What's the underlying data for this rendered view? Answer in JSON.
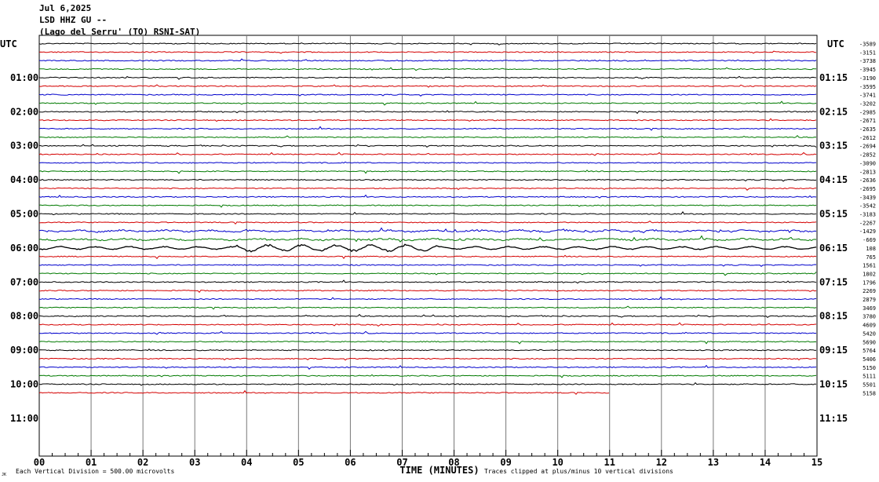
{
  "header": {
    "date": "Jul 6,2025",
    "station": "LSD HHZ GU --",
    "location": "(Lago del Serru' (TO) RSNI-SAT)"
  },
  "axes": {
    "left_unit": "UTC",
    "right_unit": "UTC",
    "xlabel": "TIME (MINUTES)",
    "footer_left": "Each Vertical Division =  500.00 microvolts",
    "footer_right": "Traces clipped at plus/minus 10 vertical divisions",
    "corner_mark": "JK"
  },
  "chart_data": {
    "type": "line",
    "title": "",
    "xlabel": "TIME (MINUTES)",
    "x_ticks": [
      "00",
      "01",
      "02",
      "03",
      "04",
      "05",
      "06",
      "07",
      "08",
      "09",
      "10",
      "11",
      "12",
      "13",
      "14",
      "15"
    ],
    "xlim": [
      0,
      15
    ],
    "left_time_labels": [
      "01:00",
      "02:00",
      "03:00",
      "04:00",
      "05:00",
      "06:00",
      "07:00",
      "08:00",
      "09:00",
      "10:00",
      "11:00"
    ],
    "right_time_labels": [
      "01:15",
      "02:15",
      "03:15",
      "04:15",
      "05:15",
      "06:15",
      "07:15",
      "08:15",
      "09:15",
      "10:15",
      "11:15"
    ],
    "trace_colors": [
      "#000000",
      "#d40000",
      "#0000cc",
      "#007a00"
    ],
    "trace_offsets": [
      "-3589",
      "-3151",
      "-3738",
      "-3945",
      "-3190",
      "-3595",
      "-3741",
      "-3202",
      "-2985",
      "-2671",
      "-2635",
      "-2612",
      "-2694",
      "-2852",
      "-3090",
      "-2813",
      "-2636",
      "-2695",
      "-3439",
      "-3542",
      "-3183",
      "-2267",
      "-1429",
      "-669",
      "108",
      "765",
      "1561",
      "1802",
      "1796",
      "2269",
      "2879",
      "3469",
      "3780",
      "4609",
      "5420",
      "5690",
      "5764",
      "5406",
      "5150",
      "5111",
      "5501",
      "5158"
    ],
    "last_trace_end_minute": 11,
    "grid": true
  }
}
